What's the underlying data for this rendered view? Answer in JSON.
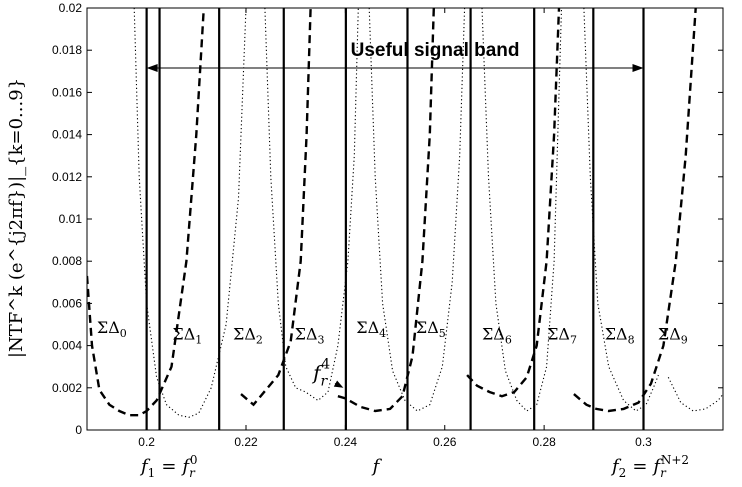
{
  "chart_data": {
    "type": "line",
    "xlabel": "f",
    "ylabel": "|NTF^k (e^{j2πf})|_{k=0...9}",
    "xlim": [
      0.188,
      0.316
    ],
    "ylim": [
      0,
      0.02
    ],
    "xticks": [
      "0.2",
      "0.22",
      "0.24",
      "0.26",
      "0.28",
      "0.3"
    ],
    "xtick_values": [
      0.2,
      0.22,
      0.24,
      0.26,
      0.28,
      0.3
    ],
    "yticks": [
      "0",
      "0.002",
      "0.004",
      "0.006",
      "0.008",
      "0.01",
      "0.012",
      "0.014",
      "0.016",
      "0.018",
      "0.02"
    ],
    "ytick_values": [
      0,
      0.002,
      0.004,
      0.006,
      0.008,
      0.01,
      0.012,
      0.014,
      0.016,
      0.018,
      0.02
    ],
    "boundaries": [
      0.2,
      0.2026,
      0.2146,
      0.2276,
      0.2401,
      0.2525,
      0.2652,
      0.278,
      0.2899,
      0.3
    ],
    "band": {
      "label": "Useful signal band",
      "from": 0.2,
      "to": 0.3
    },
    "subbands": [
      {
        "label_main": "ΣΔ",
        "label_sub": "0",
        "x": 0.193,
        "y": 0.0046
      },
      {
        "label_main": "ΣΔ",
        "label_sub": "1",
        "x": 0.2082,
        "y": 0.0043
      },
      {
        "label_main": "ΣΔ",
        "label_sub": "2",
        "x": 0.2204,
        "y": 0.0043
      },
      {
        "label_main": "ΣΔ",
        "label_sub": "3",
        "x": 0.2328,
        "y": 0.0043
      },
      {
        "label_main": "ΣΔ",
        "label_sub": "4",
        "x": 0.2452,
        "y": 0.0046
      },
      {
        "label_main": "ΣΔ",
        "label_sub": "5",
        "x": 0.2572,
        "y": 0.0046
      },
      {
        "label_main": "ΣΔ",
        "label_sub": "6",
        "x": 0.2705,
        "y": 0.0043
      },
      {
        "label_main": "ΣΔ",
        "label_sub": "7",
        "x": 0.2836,
        "y": 0.0043
      },
      {
        "label_main": "ΣΔ",
        "label_sub": "8",
        "x": 0.2952,
        "y": 0.0043
      },
      {
        "label_main": "ΣΔ",
        "label_sub": "9",
        "x": 0.3059,
        "y": 0.0043
      }
    ],
    "series": [
      {
        "style": "dashed",
        "segments": [
          [
            [
              0.188,
              0.0073
            ],
            [
              0.189,
              0.004
            ],
            [
              0.1905,
              0.0019
            ],
            [
              0.1925,
              0.0012
            ],
            [
              0.1945,
              0.0009
            ],
            [
              0.1965,
              0.0007
            ],
            [
              0.1985,
              0.0007
            ],
            [
              0.2,
              0.0009
            ],
            [
              0.202,
              0.0014
            ],
            [
              0.205,
              0.003
            ],
            [
              0.208,
              0.008
            ],
            [
              0.21,
              0.014
            ],
            [
              0.2115,
              0.02
            ]
          ],
          [
            [
              0.219,
              0.0017
            ],
            [
              0.2215,
              0.0012
            ],
            [
              0.224,
              0.0019
            ],
            [
              0.2265,
              0.0026
            ],
            [
              0.229,
              0.0042
            ],
            [
              0.231,
              0.008
            ],
            [
              0.2322,
              0.014
            ],
            [
              0.233,
              0.02
            ]
          ],
          [
            [
              0.2385,
              0.0016
            ],
            [
              0.24,
              0.0015
            ],
            [
              0.243,
              0.0011
            ],
            [
              0.246,
              0.0009
            ],
            [
              0.249,
              0.001
            ],
            [
              0.2515,
              0.0016
            ],
            [
              0.2535,
              0.0035
            ],
            [
              0.2555,
              0.008
            ],
            [
              0.257,
              0.014
            ],
            [
              0.2578,
              0.02
            ]
          ],
          [
            [
              0.2645,
              0.0026
            ],
            [
              0.2665,
              0.0021
            ],
            [
              0.269,
              0.0018
            ],
            [
              0.2715,
              0.0016
            ],
            [
              0.274,
              0.0018
            ],
            [
              0.2765,
              0.0025
            ],
            [
              0.2785,
              0.004
            ],
            [
              0.2805,
              0.008
            ],
            [
              0.282,
              0.014
            ],
            [
              0.283,
              0.02
            ]
          ],
          [
            [
              0.286,
              0.0017
            ],
            [
              0.2885,
              0.0012
            ],
            [
              0.2905,
              0.001
            ],
            [
              0.293,
              0.0009
            ],
            [
              0.296,
              0.001
            ],
            [
              0.299,
              0.0013
            ],
            [
              0.3015,
              0.0022
            ],
            [
              0.304,
              0.004
            ],
            [
              0.3065,
              0.008
            ],
            [
              0.3085,
              0.013
            ],
            [
              0.3105,
              0.02
            ]
          ]
        ]
      },
      {
        "style": "dotted",
        "segments": [
          [
            [
              0.1975,
              0.02
            ],
            [
              0.1985,
              0.012
            ],
            [
              0.2,
              0.006
            ],
            [
              0.202,
              0.0025
            ],
            [
              0.204,
              0.0012
            ],
            [
              0.2065,
              0.0007
            ],
            [
              0.2085,
              0.0006
            ],
            [
              0.2105,
              0.0008
            ],
            [
              0.213,
              0.002
            ],
            [
              0.216,
              0.005
            ],
            [
              0.2185,
              0.011
            ],
            [
              0.22,
              0.02
            ]
          ],
          [
            [
              0.2238,
              0.02
            ],
            [
              0.225,
              0.012
            ],
            [
              0.2265,
              0.006
            ],
            [
              0.228,
              0.003
            ],
            [
              0.23,
              0.002
            ],
            [
              0.232,
              0.0018
            ],
            [
              0.2345,
              0.0014
            ],
            [
              0.2365,
              0.0018
            ],
            [
              0.2385,
              0.004
            ],
            [
              0.2405,
              0.008
            ],
            [
              0.2418,
              0.013
            ],
            [
              0.2426,
              0.02
            ]
          ],
          [
            [
              0.2448,
              0.02
            ],
            [
              0.246,
              0.012
            ],
            [
              0.2475,
              0.006
            ],
            [
              0.2495,
              0.0028
            ],
            [
              0.252,
              0.0014
            ],
            [
              0.2545,
              0.0009
            ],
            [
              0.257,
              0.0012
            ],
            [
              0.2595,
              0.003
            ],
            [
              0.2615,
              0.007
            ],
            [
              0.263,
              0.013
            ],
            [
              0.264,
              0.02
            ]
          ],
          [
            [
              0.2675,
              0.02
            ],
            [
              0.2688,
              0.012
            ],
            [
              0.2703,
              0.006
            ],
            [
              0.2722,
              0.0028
            ],
            [
              0.2745,
              0.0014
            ],
            [
              0.2765,
              0.0009
            ],
            [
              0.2785,
              0.0012
            ],
            [
              0.2805,
              0.003
            ],
            [
              0.282,
              0.008
            ],
            [
              0.2835,
              0.02
            ]
          ],
          [
            [
              0.288,
              0.02
            ],
            [
              0.2893,
              0.012
            ],
            [
              0.2908,
              0.006
            ],
            [
              0.293,
              0.003
            ],
            [
              0.296,
              0.0014
            ],
            [
              0.2985,
              0.0009
            ],
            [
              0.3005,
              0.0012
            ],
            [
              0.302,
              0.002
            ],
            [
              0.303,
              0.0026
            ]
          ],
          [
            [
              0.305,
              0.0025
            ],
            [
              0.3075,
              0.0013
            ],
            [
              0.31,
              0.0009
            ],
            [
              0.3125,
              0.001
            ],
            [
              0.315,
              0.0014
            ],
            [
              0.316,
              0.0017
            ]
          ]
        ]
      }
    ],
    "annotations": {
      "fr4": {
        "label_main": "f",
        "label_sub": "r",
        "label_sup": "4",
        "text_x": 0.2335,
        "text_y": 0.0024,
        "arrow_to_x": 0.2396,
        "arrow_to_y": 0.002
      },
      "f1": {
        "lhs_main": "f",
        "lhs_sub": "1",
        "eq": "=",
        "rhs_main": "f",
        "rhs_sub": "r",
        "rhs_sup": "0"
      },
      "f2": {
        "lhs_main": "f",
        "lhs_sub": "2",
        "eq": "=",
        "rhs_main": "f",
        "rhs_sub": "r",
        "rhs_sup": "N+2"
      }
    }
  }
}
